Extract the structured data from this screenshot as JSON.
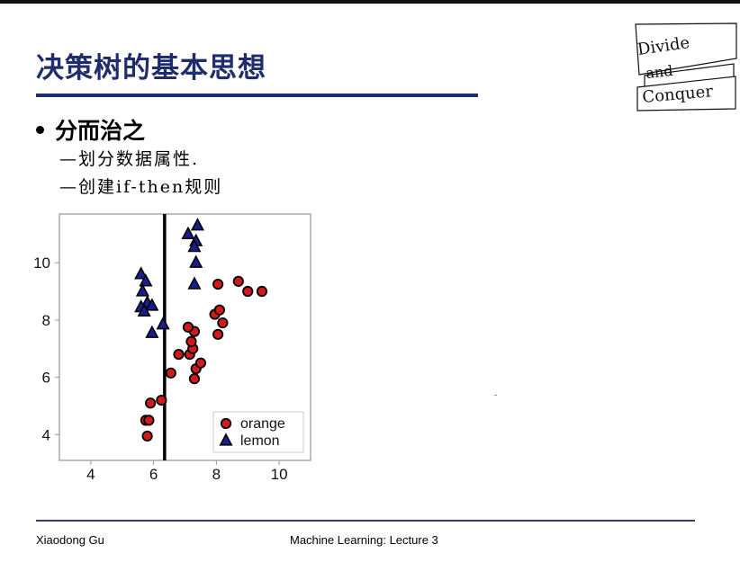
{
  "slide": {
    "title": "决策树的基本思想",
    "bullet": "分而治之",
    "sub_items": [
      "—划分数据属性.",
      "—创建if-then规则"
    ],
    "footer_left": "Xiaodong Gu",
    "footer_center": "Machine Learning: Lecture 3"
  },
  "sticker": {
    "lines": [
      "Divide",
      "and",
      "Conquer"
    ]
  },
  "chart_data": {
    "type": "scatter",
    "xlim": [
      3,
      11
    ],
    "ylim": [
      3.1,
      11.7
    ],
    "x_ticks": [
      4,
      6,
      8,
      10
    ],
    "y_ticks": [
      4,
      6,
      8,
      10
    ],
    "decision_boundary_x": 6.35,
    "legend_position": "bottom-right",
    "colors": {
      "orange": "#d11a1a",
      "lemon": "#1c1c8c"
    },
    "series": [
      {
        "name": "orange",
        "marker": "circle",
        "points": [
          [
            5.75,
            4.5
          ],
          [
            5.85,
            4.5
          ],
          [
            5.8,
            3.95
          ],
          [
            5.9,
            5.1
          ],
          [
            6.25,
            5.2
          ],
          [
            6.55,
            6.15
          ],
          [
            6.8,
            6.8
          ],
          [
            7.15,
            6.8
          ],
          [
            7.35,
            6.3
          ],
          [
            7.5,
            6.5
          ],
          [
            7.3,
            5.95
          ],
          [
            7.25,
            7.0
          ],
          [
            7.2,
            7.25
          ],
          [
            7.3,
            7.6
          ],
          [
            7.1,
            7.75
          ],
          [
            8.2,
            7.9
          ],
          [
            8.05,
            7.5
          ],
          [
            7.95,
            8.2
          ],
          [
            8.1,
            8.35
          ],
          [
            8.05,
            9.25
          ],
          [
            8.7,
            9.35
          ],
          [
            9.0,
            9.0
          ],
          [
            9.45,
            9.0
          ]
        ]
      },
      {
        "name": "lemon",
        "marker": "triangle",
        "points": [
          [
            5.6,
            9.6
          ],
          [
            5.75,
            9.35
          ],
          [
            5.65,
            9.0
          ],
          [
            5.8,
            8.6
          ],
          [
            5.95,
            8.5
          ],
          [
            5.6,
            8.45
          ],
          [
            5.7,
            8.3
          ],
          [
            5.95,
            7.55
          ],
          [
            6.3,
            7.85
          ],
          [
            7.1,
            11.0
          ],
          [
            7.4,
            11.3
          ],
          [
            7.35,
            10.75
          ],
          [
            7.3,
            10.55
          ],
          [
            7.35,
            10.0
          ],
          [
            7.3,
            9.25
          ]
        ]
      }
    ]
  }
}
